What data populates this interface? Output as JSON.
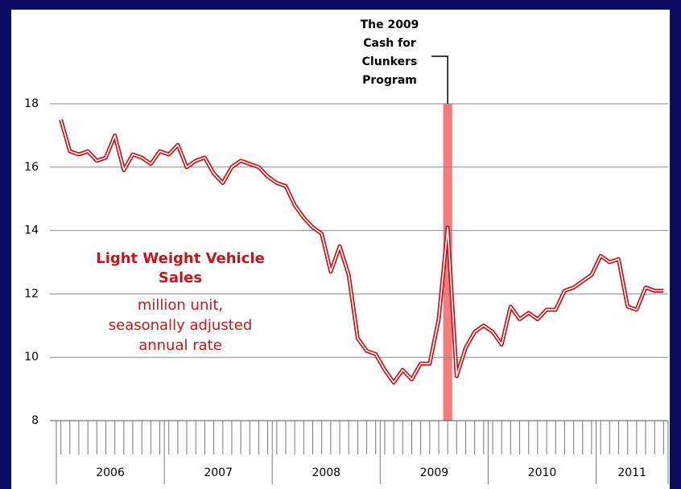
{
  "chart_data": {
    "type": "line",
    "annotations": {
      "event": [
        "The 2009",
        "Cash for",
        "Clunkers",
        "Program"
      ],
      "series_title": [
        "Light Weight Vehicle",
        "Sales"
      ],
      "series_note": [
        "million unit,",
        "seasonally adjusted",
        "annual rate"
      ]
    },
    "x": [
      2006.042,
      2006.125,
      2006.208,
      2006.292,
      2006.375,
      2006.458,
      2006.542,
      2006.625,
      2006.708,
      2006.792,
      2006.875,
      2006.958,
      2007.042,
      2007.125,
      2007.208,
      2007.292,
      2007.375,
      2007.458,
      2007.542,
      2007.625,
      2007.708,
      2007.792,
      2007.875,
      2007.958,
      2008.042,
      2008.125,
      2008.208,
      2008.292,
      2008.375,
      2008.458,
      2008.542,
      2008.625,
      2008.708,
      2008.792,
      2008.875,
      2008.958,
      2009.042,
      2009.125,
      2009.208,
      2009.292,
      2009.375,
      2009.458,
      2009.542,
      2009.625,
      2009.708,
      2009.792,
      2009.875,
      2009.958,
      2010.042,
      2010.125,
      2010.208,
      2010.292,
      2010.375,
      2010.458,
      2010.542,
      2010.625,
      2010.708,
      2010.792,
      2010.875,
      2010.958,
      2011.042,
      2011.125,
      2011.208,
      2011.292,
      2011.375,
      2011.458,
      2011.542,
      2011.625
    ],
    "series": [
      {
        "name": "Light Weight Vehicle Sales",
        "color": "#c0161c",
        "values": [
          17.5,
          16.5,
          16.4,
          16.5,
          16.2,
          16.3,
          17.0,
          15.9,
          16.4,
          16.3,
          16.1,
          16.5,
          16.4,
          16.7,
          16.0,
          16.2,
          16.3,
          15.8,
          15.5,
          16.0,
          16.2,
          16.1,
          16.0,
          15.7,
          15.5,
          15.4,
          14.8,
          14.4,
          14.1,
          13.9,
          12.7,
          13.5,
          12.6,
          10.6,
          10.2,
          10.1,
          9.6,
          9.2,
          9.6,
          9.3,
          9.8,
          9.8,
          11.2,
          14.1,
          9.4,
          10.3,
          10.8,
          11.0,
          10.8,
          10.4,
          11.6,
          11.2,
          11.4,
          11.2,
          11.5,
          11.5,
          12.1,
          12.2,
          12.4,
          12.6,
          13.2,
          13.0,
          13.1,
          11.6,
          11.5,
          12.2,
          12.1,
          12.1
        ]
      }
    ],
    "highlight": {
      "xlim": [
        2009.583,
        2009.667
      ],
      "color": "#f47c7c"
    },
    "xlim": [
      2006,
      2011.667
    ],
    "xticks": [
      {
        "value": 2006.5,
        "label": "2006"
      },
      {
        "value": 2007.5,
        "label": "2007"
      },
      {
        "value": 2008.5,
        "label": "2008"
      },
      {
        "value": 2009.5,
        "label": "2009"
      },
      {
        "value": 2010.5,
        "label": "2010"
      },
      {
        "value": 2011.333,
        "label": "2011"
      }
    ],
    "ylim": [
      8,
      18
    ],
    "yticks": [
      8,
      10,
      12,
      14,
      16,
      18
    ],
    "grid": true
  }
}
